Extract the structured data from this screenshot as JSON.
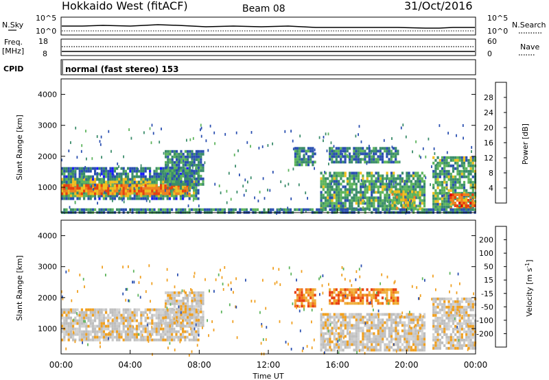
{
  "header": {
    "title": "Hokkaido West (fitACF)",
    "beam": "Beam 08",
    "date": "31/Oct/2016"
  },
  "top_panels": {
    "nsky_label": "N.Sky",
    "nsky_ticks": [
      "10^5",
      "10^0"
    ],
    "nsearch_label": "N.Search",
    "freq_label_1": "Freq.",
    "freq_label_2": "[MHz]",
    "freq_ticks": [
      "18",
      "8"
    ],
    "nave_label": "Nave",
    "nave_ticks": [
      "60",
      "0"
    ],
    "cpid_label": "CPID",
    "cpid_text": "normal (fast stereo) 153"
  },
  "chart_data": [
    {
      "type": "heatmap",
      "name": "power",
      "ylabel": "Slant Range [km]",
      "ylim": [
        180,
        4500
      ],
      "yticks": [
        1000,
        2000,
        3000,
        4000
      ],
      "xlim": [
        0,
        24
      ],
      "colorbar": {
        "label": "Power [dB]",
        "range": [
          0,
          32
        ],
        "ticks": [
          "4",
          "8",
          "12",
          "16",
          "20",
          "24",
          "28"
        ],
        "colors": [
          "#1a1aff",
          "#2a4fb0",
          "#3a8c6a",
          "#5db45c",
          "#f0c020",
          "#f08020",
          "#e84010",
          "#e00000"
        ]
      },
      "regions": [
        {
          "t": [
            0.0,
            7.9
          ],
          "r": [
            600,
            1650
          ],
          "level": 8
        },
        {
          "t": [
            0.0,
            7.7
          ],
          "r": [
            700,
            1300
          ],
          "level": 14
        },
        {
          "t": [
            0.0,
            7.5
          ],
          "r": [
            800,
            1100
          ],
          "level": 22
        },
        {
          "t": [
            6.0,
            8.2
          ],
          "r": [
            1100,
            2200
          ],
          "level": 10
        },
        {
          "t": [
            13.5,
            14.7
          ],
          "r": [
            1700,
            2300
          ],
          "level": 10
        },
        {
          "t": [
            15.5,
            19.5
          ],
          "r": [
            1800,
            2300
          ],
          "level": 9
        },
        {
          "t": [
            15.0,
            21.0
          ],
          "r": [
            300,
            1500
          ],
          "level": 12
        },
        {
          "t": [
            19.0,
            20.5
          ],
          "r": [
            300,
            900
          ],
          "level": 16
        },
        {
          "t": [
            21.5,
            24.0
          ],
          "r": [
            400,
            2000
          ],
          "level": 12
        },
        {
          "t": [
            22.5,
            24.0
          ],
          "r": [
            300,
            800
          ],
          "level": 24
        },
        {
          "t": [
            0.0,
            24.0
          ],
          "r": [
            180,
            320
          ],
          "level": 9
        }
      ]
    },
    {
      "type": "heatmap",
      "name": "velocity",
      "ylabel": "Slant Range [km]",
      "xlabel": "Time UT",
      "ylim": [
        180,
        4500
      ],
      "yticks": [
        1000,
        2000,
        3000,
        4000
      ],
      "xlim": [
        0,
        24
      ],
      "xticks": [
        "00:00",
        "04:00",
        "08:00",
        "12:00",
        "16:00",
        "20:00",
        "00:00"
      ],
      "colorbar": {
        "label": "Velocity [m s",
        "label_sup": "-1",
        "label_end": "]",
        "ticks": [
          "200",
          "100",
          "50",
          "15",
          "-15",
          "-50",
          "-100",
          "-200"
        ],
        "colors": [
          "#2a4fb0",
          "#2a8c5a",
          "#5db45c",
          "#8ad060",
          "#c8c8c8",
          "#f0a020",
          "#f07020",
          "#e84010",
          "#e00000"
        ]
      },
      "regions": [
        {
          "t": [
            0.0,
            7.9
          ],
          "r": [
            600,
            1650
          ],
          "class": "gray"
        },
        {
          "t": [
            6.0,
            8.2
          ],
          "r": [
            1100,
            2200
          ],
          "class": "gray"
        },
        {
          "t": [
            13.5,
            14.7
          ],
          "r": [
            1700,
            2300
          ],
          "class": "orange"
        },
        {
          "t": [
            15.5,
            19.5
          ],
          "r": [
            1800,
            2300
          ],
          "class": "orange"
        },
        {
          "t": [
            15.0,
            21.0
          ],
          "r": [
            300,
            1500
          ],
          "class": "gray"
        },
        {
          "t": [
            21.5,
            24.0
          ],
          "r": [
            400,
            2000
          ],
          "class": "gray"
        }
      ]
    }
  ]
}
